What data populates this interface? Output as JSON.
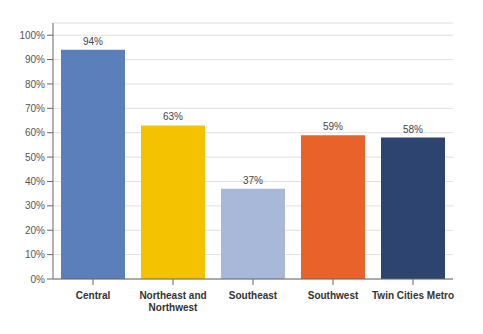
{
  "chart_data": {
    "type": "bar",
    "categories": [
      "Central",
      "Northeast and\nNorthwest",
      "Southeast",
      "Southwest",
      "Twin Cities Metro"
    ],
    "values": [
      94,
      63,
      37,
      59,
      58
    ],
    "value_labels": [
      "94%",
      "63%",
      "37%",
      "59%",
      "58%"
    ],
    "colors": [
      "#5b7fba",
      "#f5c200",
      "#a8b8d8",
      "#e8622a",
      "#2e4470"
    ],
    "data_labels": true,
    "ylim": [
      0,
      105
    ],
    "yticks": [
      {
        "value": 0,
        "label": "0%"
      },
      {
        "value": 10,
        "label": "10%"
      },
      {
        "value": 20,
        "label": "20%"
      },
      {
        "value": 30,
        "label": "30%"
      },
      {
        "value": 40,
        "label": "40%"
      },
      {
        "value": 50,
        "label": "50%"
      },
      {
        "value": 60,
        "label": "60%"
      },
      {
        "value": 70,
        "label": "70%"
      },
      {
        "value": 80,
        "label": "80%"
      },
      {
        "value": 90,
        "label": "90%"
      },
      {
        "value": 100,
        "label": "100%"
      }
    ],
    "grid": true
  }
}
